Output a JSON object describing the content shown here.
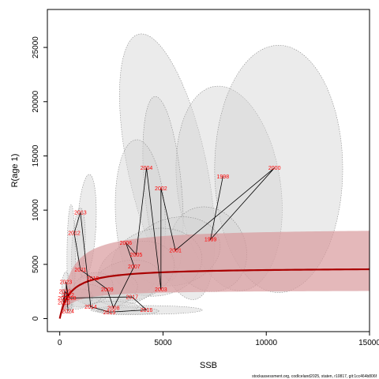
{
  "chart_data": {
    "type": "scatter",
    "title": "",
    "xlabel": "SSB",
    "ylabel": "R(age 1)",
    "xlim": [
      -600,
      15000
    ],
    "ylim": [
      -1200,
      28500
    ],
    "xticks": [
      "0",
      "5000",
      "10000",
      "15000"
    ],
    "yticks": [
      "0",
      "5000",
      "10000",
      "15000",
      "20000",
      "25000"
    ],
    "grid": false,
    "legend": "none",
    "footer": "stockassessment.org, codIceland2025, staten, r10817, git:1cc464b806f",
    "colors": {
      "points_line": "#000000",
      "year_labels": "#ff0000",
      "curve": "#aa0000",
      "band": "#d99a9c",
      "ellipses": "#d3d3d3"
    },
    "points": [
      {
        "year": "1998",
        "ssb": 7900,
        "rec": 13100
      },
      {
        "year": "1999",
        "ssb": 7300,
        "rec": 7300
      },
      {
        "year": "2000",
        "ssb": 10400,
        "rec": 13900
      },
      {
        "year": "2001",
        "ssb": 5600,
        "rec": 6300
      },
      {
        "year": "2002",
        "ssb": 4900,
        "rec": 12000
      },
      {
        "year": "2003",
        "ssb": 4900,
        "rec": 2700
      },
      {
        "year": "2004",
        "ssb": 4200,
        "rec": 13900
      },
      {
        "year": "2005",
        "ssb": 3700,
        "rec": 5900
      },
      {
        "year": "2006",
        "ssb": 3200,
        "rec": 7000
      },
      {
        "year": "2007",
        "ssb": 3600,
        "rec": 4800
      },
      {
        "year": "2008",
        "ssb": 2600,
        "rec": 1000
      },
      {
        "year": "2009",
        "ssb": 2300,
        "rec": 2700
      },
      {
        "year": "2010",
        "ssb": 1600,
        "rec": 3700
      },
      {
        "year": "2011",
        "ssb": 1000,
        "rec": 4500
      },
      {
        "year": "2012",
        "ssb": 700,
        "rec": 7900
      },
      {
        "year": "2013",
        "ssb": 1000,
        "rec": 9800
      },
      {
        "year": "2014",
        "ssb": 1500,
        "rec": 1100
      },
      {
        "year": "2015",
        "ssb": 2400,
        "rec": 600
      },
      {
        "year": "2016",
        "ssb": 4200,
        "rec": 800
      },
      {
        "year": "2017",
        "ssb": 3500,
        "rec": 2000
      },
      {
        "year": "2018",
        "ssb": 500,
        "rec": 1900
      },
      {
        "year": "2019",
        "ssb": 250,
        "rec": 2500
      },
      {
        "year": "2020",
        "ssb": 200,
        "rec": 1500
      },
      {
        "year": "2021",
        "ssb": 200,
        "rec": 1900
      },
      {
        "year": "2022",
        "ssb": 400,
        "rec": 2200
      },
      {
        "year": "2023",
        "ssb": 300,
        "rec": 3400
      },
      {
        "year": "2024",
        "ssb": 400,
        "rec": 700
      }
    ],
    "curve": {
      "asymptote": 4700,
      "half_saturation": 500
    },
    "band": {
      "lower_factor": 0.56,
      "upper_factor": 1.78
    },
    "ellipses": [
      {
        "ssb": 5200,
        "rec": 14000,
        "ssb_radius": 1900,
        "rec_radius": 12500,
        "tilt_deg": -12
      },
      {
        "ssb": 8200,
        "rec": 12000,
        "ssb_radius": 2500,
        "rec_radius": 9500,
        "tilt_deg": -8
      },
      {
        "ssb": 10600,
        "rec": 13800,
        "ssb_radius": 3100,
        "rec_radius": 11400,
        "tilt_deg": 0
      },
      {
        "ssb": 5000,
        "rec": 12000,
        "ssb_radius": 900,
        "rec_radius": 8500,
        "tilt_deg": -5
      },
      {
        "ssb": 3900,
        "rec": 9500,
        "ssb_radius": 1200,
        "rec_radius": 7000,
        "tilt_deg": -3
      },
      {
        "ssb": 7200,
        "rec": 6400,
        "ssb_radius": 1800,
        "rec_radius": 4000,
        "tilt_deg": -25
      },
      {
        "ssb": 5600,
        "rec": 6200,
        "ssb_radius": 2200,
        "rec_radius": 3100,
        "tilt_deg": -15
      },
      {
        "ssb": 4700,
        "rec": 5200,
        "ssb_radius": 2200,
        "rec_radius": 3100,
        "tilt_deg": -10
      },
      {
        "ssb": 3700,
        "rec": 4400,
        "ssb_radius": 1900,
        "rec_radius": 2600,
        "tilt_deg": -20
      },
      {
        "ssb": 3200,
        "rec": 3300,
        "ssb_radius": 1700,
        "rec_radius": 2000,
        "tilt_deg": -15
      },
      {
        "ssb": 2400,
        "rec": 2500,
        "ssb_radius": 1400,
        "rec_radius": 1500,
        "tilt_deg": -15
      },
      {
        "ssb": 1300,
        "rec": 8500,
        "ssb_radius": 450,
        "rec_radius": 4800,
        "tilt_deg": 3
      },
      {
        "ssb": 900,
        "rec": 6500,
        "ssb_radius": 320,
        "rec_radius": 3700,
        "tilt_deg": 3
      },
      {
        "ssb": 550,
        "rec": 5500,
        "ssb_radius": 200,
        "rec_radius": 5000,
        "tilt_deg": 0
      },
      {
        "ssb": 1600,
        "rec": 2800,
        "ssb_radius": 1000,
        "rec_radius": 1400,
        "tilt_deg": -18
      },
      {
        "ssb": 1200,
        "rec": 2100,
        "ssb_radius": 900,
        "rec_radius": 1000,
        "tilt_deg": -12
      },
      {
        "ssb": 4200,
        "rec": 800,
        "ssb_radius": 2700,
        "rec_radius": 400,
        "tilt_deg": 0
      },
      {
        "ssb": 3300,
        "rec": 700,
        "ssb_radius": 1500,
        "rec_radius": 350,
        "tilt_deg": 0
      },
      {
        "ssb": 2600,
        "rec": 1100,
        "ssb_radius": 1200,
        "rec_radius": 500,
        "tilt_deg": 0
      },
      {
        "ssb": 900,
        "rec": 1800,
        "ssb_radius": 700,
        "rec_radius": 900,
        "tilt_deg": -15
      },
      {
        "ssb": 400,
        "rec": 2000,
        "ssb_radius": 250,
        "rec_radius": 1000,
        "tilt_deg": 0
      },
      {
        "ssb": 300,
        "rec": 2800,
        "ssb_radius": 200,
        "rec_radius": 1500,
        "tilt_deg": 0
      },
      {
        "ssb": 350,
        "rec": 1300,
        "ssb_radius": 230,
        "rec_radius": 800,
        "tilt_deg": 0
      },
      {
        "ssb": 250,
        "rec": 1800,
        "ssb_radius": 180,
        "rec_radius": 900,
        "tilt_deg": 0
      }
    ]
  }
}
